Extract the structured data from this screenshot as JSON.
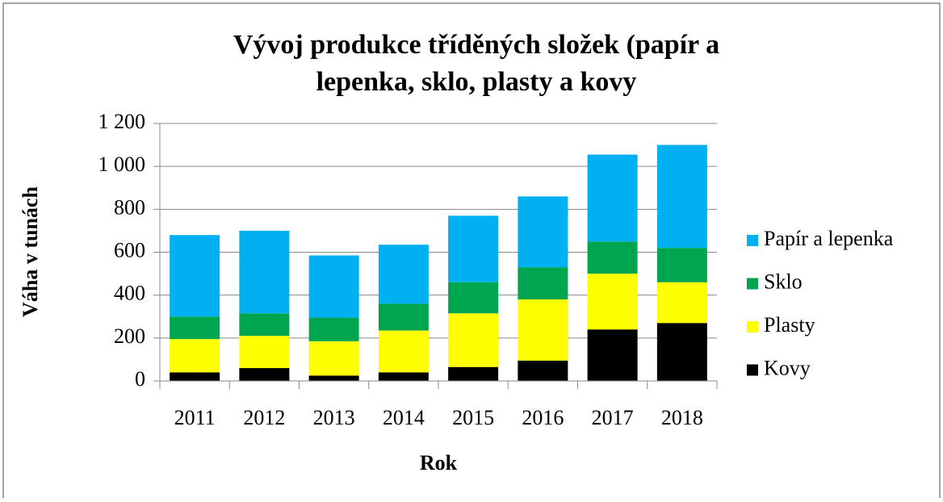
{
  "chart_data": {
    "type": "stacked_bar",
    "title": "Vývoj produkce tříděných složek (papír a",
    "subtitle": "lepenka, sklo, plasty a kovy",
    "x_label": "Rok",
    "y_label": "Váha v tunách",
    "categories": [
      "2011",
      "2012",
      "2013",
      "2014",
      "2015",
      "2016",
      "2017",
      "2018"
    ],
    "series": [
      {
        "name": "Kovy",
        "color": "#000000",
        "values": [
          40,
          60,
          25,
          40,
          65,
          95,
          240,
          270
        ]
      },
      {
        "name": "Plasty",
        "color": "#ffff00",
        "values": [
          155,
          150,
          160,
          195,
          250,
          285,
          260,
          190
        ]
      },
      {
        "name": "Sklo",
        "color": "#00a550",
        "values": [
          105,
          105,
          110,
          125,
          145,
          150,
          150,
          160
        ]
      },
      {
        "name": "Papír a lepenka",
        "color": "#00b0f0",
        "values": [
          380,
          385,
          290,
          275,
          310,
          330,
          405,
          480
        ]
      }
    ],
    "ylim": [
      0,
      1200
    ],
    "yticks": [
      0,
      200,
      400,
      600,
      800,
      {
        "value": 1000,
        "label": "1 000"
      },
      {
        "value": 1200,
        "label": "1 200"
      }
    ],
    "grid": true,
    "legend": "right"
  }
}
